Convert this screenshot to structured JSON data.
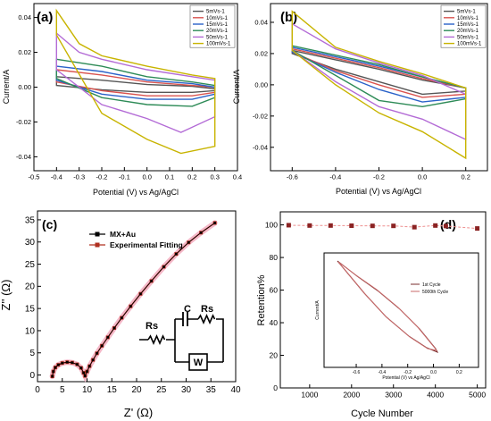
{
  "chart_data": [
    {
      "type": "line",
      "panel_label": "(a)",
      "xlabel": "Potential (V) vs Ag/AgCl",
      "ylabel": "Current/A",
      "xlim": [
        -0.5,
        0.4
      ],
      "ylim": [
        -0.048,
        0.048
      ],
      "xticks": [
        "-0.5",
        "-0.4",
        "-0.3",
        "-0.2",
        "-0.1",
        "0.0",
        "0.1",
        "0.2",
        "0.3",
        "0.4"
      ],
      "yticks": [
        "-0.04",
        "-0.02",
        "0.00",
        "0.02",
        "0.04"
      ],
      "legend_position": "top-right",
      "series": [
        {
          "name": "5mVs-1",
          "color": "#555555",
          "upper": [
            [
              -0.4,
              0.006
            ],
            [
              -0.2,
              0.004
            ],
            [
              0.0,
              0.0015
            ],
            [
              0.2,
              0.0005
            ],
            [
              0.3,
              -0.001
            ]
          ],
          "lower": [
            [
              -0.4,
              0.001
            ],
            [
              -0.2,
              -0.0015
            ],
            [
              0.0,
              -0.003
            ],
            [
              0.2,
              -0.003
            ],
            [
              0.3,
              -0.002
            ]
          ]
        },
        {
          "name": "10mVs-1",
          "color": "#d9534f",
          "upper": [
            [
              -0.4,
              0.01
            ],
            [
              -0.2,
              0.007
            ],
            [
              0.0,
              0.003
            ],
            [
              0.2,
              0.001
            ],
            [
              0.3,
              0.0
            ]
          ],
          "lower": [
            [
              -0.4,
              0.003
            ],
            [
              -0.2,
              -0.002
            ],
            [
              0.0,
              -0.005
            ],
            [
              0.2,
              -0.005
            ],
            [
              0.3,
              -0.003
            ]
          ]
        },
        {
          "name": "15mVs-1",
          "color": "#2a62c9",
          "upper": [
            [
              -0.4,
              0.012
            ],
            [
              -0.2,
              0.009
            ],
            [
              0.0,
              0.004
            ],
            [
              0.2,
              0.002
            ],
            [
              0.3,
              0.0
            ]
          ],
          "lower": [
            [
              -0.4,
              0.004
            ],
            [
              -0.2,
              -0.004
            ],
            [
              0.0,
              -0.007
            ],
            [
              0.2,
              -0.007
            ],
            [
              0.3,
              -0.004
            ]
          ]
        },
        {
          "name": "20mVs-1",
          "color": "#2e8b57",
          "upper": [
            [
              -0.4,
              0.016
            ],
            [
              -0.2,
              0.012
            ],
            [
              0.0,
              0.006
            ],
            [
              0.2,
              0.003
            ],
            [
              0.3,
              0.001
            ]
          ],
          "lower": [
            [
              -0.4,
              0.005
            ],
            [
              -0.2,
              -0.006
            ],
            [
              0.0,
              -0.01
            ],
            [
              0.2,
              -0.011
            ],
            [
              0.3,
              -0.006
            ]
          ]
        },
        {
          "name": "50mVs-1",
          "color": "#b36bd6",
          "upper": [
            [
              -0.4,
              0.031
            ],
            [
              -0.3,
              0.02
            ],
            [
              -0.2,
              0.016
            ],
            [
              0.0,
              0.01
            ],
            [
              0.2,
              0.006
            ],
            [
              0.3,
              0.004
            ]
          ],
          "lower": [
            [
              -0.4,
              0.01
            ],
            [
              -0.2,
              -0.01
            ],
            [
              0.0,
              -0.018
            ],
            [
              0.15,
              -0.026
            ],
            [
              0.3,
              -0.017
            ]
          ]
        },
        {
          "name": "100mVs-1",
          "color": "#c8b400",
          "upper": [
            [
              -0.4,
              0.044
            ],
            [
              -0.3,
              0.025
            ],
            [
              -0.2,
              0.018
            ],
            [
              0.0,
              0.012
            ],
            [
              0.2,
              0.007
            ],
            [
              0.3,
              0.005
            ]
          ],
          "lower": [
            [
              -0.4,
              0.03
            ],
            [
              -0.2,
              -0.015
            ],
            [
              0.0,
              -0.03
            ],
            [
              0.15,
              -0.038
            ],
            [
              0.3,
              -0.034
            ]
          ]
        }
      ]
    },
    {
      "type": "line",
      "panel_label": "(b)",
      "xlabel": "Potential (V) vs Ag/AgCl",
      "ylabel": "Current/A",
      "xlim": [
        -0.7,
        0.3
      ],
      "ylim": [
        -0.055,
        0.052
      ],
      "xticks": [
        "-0.6",
        "-0.4",
        "-0.2",
        "0.0",
        "0.2"
      ],
      "yticks": [
        "-0.04",
        "-0.02",
        "0.00",
        "0.02",
        "0.04"
      ],
      "legend_position": "top-right",
      "series": [
        {
          "name": "5mVs-1",
          "color": "#555555",
          "upper": [
            [
              -0.6,
              0.022
            ],
            [
              -0.4,
              0.016
            ],
            [
              -0.2,
              0.01
            ],
            [
              0.0,
              0.003
            ],
            [
              0.2,
              -0.002
            ]
          ],
          "lower": [
            [
              -0.6,
              0.02
            ],
            [
              -0.4,
              0.01
            ],
            [
              -0.2,
              0.002
            ],
            [
              0.0,
              -0.006
            ],
            [
              0.2,
              -0.004
            ]
          ]
        },
        {
          "name": "10mVs-1",
          "color": "#d9534f",
          "upper": [
            [
              -0.6,
              0.023
            ],
            [
              -0.4,
              0.017
            ],
            [
              -0.2,
              0.011
            ],
            [
              0.0,
              0.004
            ],
            [
              0.2,
              -0.002
            ]
          ],
          "lower": [
            [
              -0.6,
              0.021
            ],
            [
              -0.4,
              0.009
            ],
            [
              -0.2,
              0.0
            ],
            [
              0.0,
              -0.008
            ],
            [
              0.2,
              -0.006
            ]
          ]
        },
        {
          "name": "15mVs-1",
          "color": "#2a62c9",
          "upper": [
            [
              -0.6,
              0.024
            ],
            [
              -0.4,
              0.018
            ],
            [
              -0.2,
              0.012
            ],
            [
              0.0,
              0.005
            ],
            [
              0.2,
              -0.002
            ]
          ],
          "lower": [
            [
              -0.6,
              0.021
            ],
            [
              -0.4,
              0.008
            ],
            [
              -0.2,
              -0.003
            ],
            [
              0.0,
              -0.011
            ],
            [
              0.2,
              -0.008
            ]
          ]
        },
        {
          "name": "20mVs-1",
          "color": "#2e8b57",
          "upper": [
            [
              -0.6,
              0.025
            ],
            [
              -0.4,
              0.019
            ],
            [
              -0.2,
              0.013
            ],
            [
              0.0,
              0.005
            ],
            [
              0.2,
              -0.002
            ]
          ],
          "lower": [
            [
              -0.6,
              0.022
            ],
            [
              -0.4,
              0.006
            ],
            [
              -0.2,
              -0.01
            ],
            [
              0.0,
              -0.014
            ],
            [
              0.2,
              -0.009
            ]
          ]
        },
        {
          "name": "50mVs-1",
          "color": "#b36bd6",
          "upper": [
            [
              -0.6,
              0.039
            ],
            [
              -0.4,
              0.023
            ],
            [
              -0.2,
              0.014
            ],
            [
              0.0,
              0.006
            ],
            [
              0.2,
              -0.006
            ]
          ],
          "lower": [
            [
              -0.6,
              0.022
            ],
            [
              -0.4,
              0.002
            ],
            [
              -0.2,
              -0.014
            ],
            [
              0.0,
              -0.022
            ],
            [
              0.2,
              -0.035
            ]
          ]
        },
        {
          "name": "100mVs-1",
          "color": "#c8b400",
          "upper": [
            [
              -0.6,
              0.047
            ],
            [
              -0.4,
              0.024
            ],
            [
              -0.2,
              0.015
            ],
            [
              0.0,
              0.007
            ],
            [
              0.2,
              -0.002
            ]
          ],
          "lower": [
            [
              -0.6,
              0.022
            ],
            [
              -0.4,
              0.0
            ],
            [
              -0.2,
              -0.018
            ],
            [
              0.0,
              -0.03
            ],
            [
              0.2,
              -0.047
            ]
          ]
        }
      ]
    },
    {
      "type": "scatter",
      "panel_label": "(c)",
      "xlabel": "Z' (Ω)",
      "ylabel": "Z'' (Ω)",
      "xlim": [
        0,
        40
      ],
      "ylim": [
        -1.5,
        37
      ],
      "xticks": [
        "0",
        "5",
        "10",
        "15",
        "20",
        "25",
        "30",
        "35",
        "40"
      ],
      "yticks": [
        "0",
        "5",
        "10",
        "15",
        "20",
        "25",
        "30",
        "35"
      ],
      "legend_position": "top-left",
      "series": [
        {
          "name": "MX+Au",
          "color": "#000000",
          "marker": "square",
          "x": [
            3.0,
            3.2,
            3.6,
            4.2,
            5.0,
            6.0,
            7.0,
            8.0,
            8.8,
            9.3,
            9.6,
            10.0,
            10.5,
            11.2,
            12.0,
            13.0,
            14.2,
            15.5,
            17.0,
            18.8,
            20.8,
            23.0,
            25.5,
            28.0,
            30.5,
            33.0,
            35.8
          ],
          "y": [
            -0.3,
            0.8,
            1.7,
            2.3,
            2.7,
            2.9,
            2.8,
            2.4,
            1.6,
            0.5,
            -0.2,
            0.8,
            2.0,
            3.4,
            4.9,
            6.6,
            8.5,
            10.6,
            12.9,
            15.5,
            18.3,
            21.2,
            24.4,
            27.3,
            29.9,
            32.1,
            34.3
          ]
        },
        {
          "name": "Experimental Fitting",
          "color": "#b03020",
          "marker": "square",
          "x": [
            3.0,
            3.2,
            3.6,
            4.2,
            5.0,
            6.0,
            7.0,
            8.0,
            8.8,
            9.3,
            9.6,
            10.0,
            10.5,
            11.2,
            12.0,
            13.0,
            14.2,
            15.5,
            17.0,
            18.8,
            20.8,
            23.0,
            25.5,
            28.0,
            30.5,
            33.0,
            35.8
          ],
          "y": [
            -0.3,
            0.8,
            1.7,
            2.3,
            2.7,
            2.9,
            2.8,
            2.4,
            1.6,
            0.5,
            -0.2,
            0.8,
            2.0,
            3.4,
            4.9,
            6.6,
            8.5,
            10.6,
            12.9,
            15.5,
            18.3,
            21.2,
            24.4,
            27.3,
            29.9,
            32.1,
            34.3
          ]
        }
      ],
      "circuit_labels": {
        "rs_left": "Rs",
        "c": "C",
        "rs_right": "Rs",
        "w": "W"
      }
    },
    {
      "type": "line",
      "panel_label": "(d)",
      "xlabel": "Cycle Number",
      "ylabel": "Retention%",
      "xlim": [
        300,
        5200
      ],
      "ylim": [
        0,
        108
      ],
      "xticks": [
        "1000",
        "2000",
        "3000",
        "4000",
        "5000"
      ],
      "yticks": [
        "0",
        "20",
        "40",
        "60",
        "80",
        "100"
      ],
      "series": [
        {
          "name": "",
          "color": "#8b2323",
          "marker": "square",
          "x": [
            500,
            1000,
            1500,
            2000,
            2500,
            3000,
            3500,
            4000,
            4250,
            5000
          ],
          "y": [
            99.8,
            99.6,
            99.6,
            99.5,
            99.4,
            99.4,
            98.6,
            99.6,
            99.3,
            97.8
          ]
        }
      ],
      "inset": {
        "ylabel": "Current/A",
        "xlabel": "Potential (V) vs Ag/AgCl",
        "xlim": [
          -0.85,
          0.35
        ],
        "xticks": [
          "-0.6",
          "-0.4",
          "-0.2",
          "0.0",
          "0.2"
        ],
        "legend_position": "top-right",
        "series": [
          {
            "name": "1st Cycle",
            "color": "#7a2e2e"
          },
          {
            "name": "5000th Cycle",
            "color": "#c86a6a"
          }
        ]
      }
    }
  ]
}
